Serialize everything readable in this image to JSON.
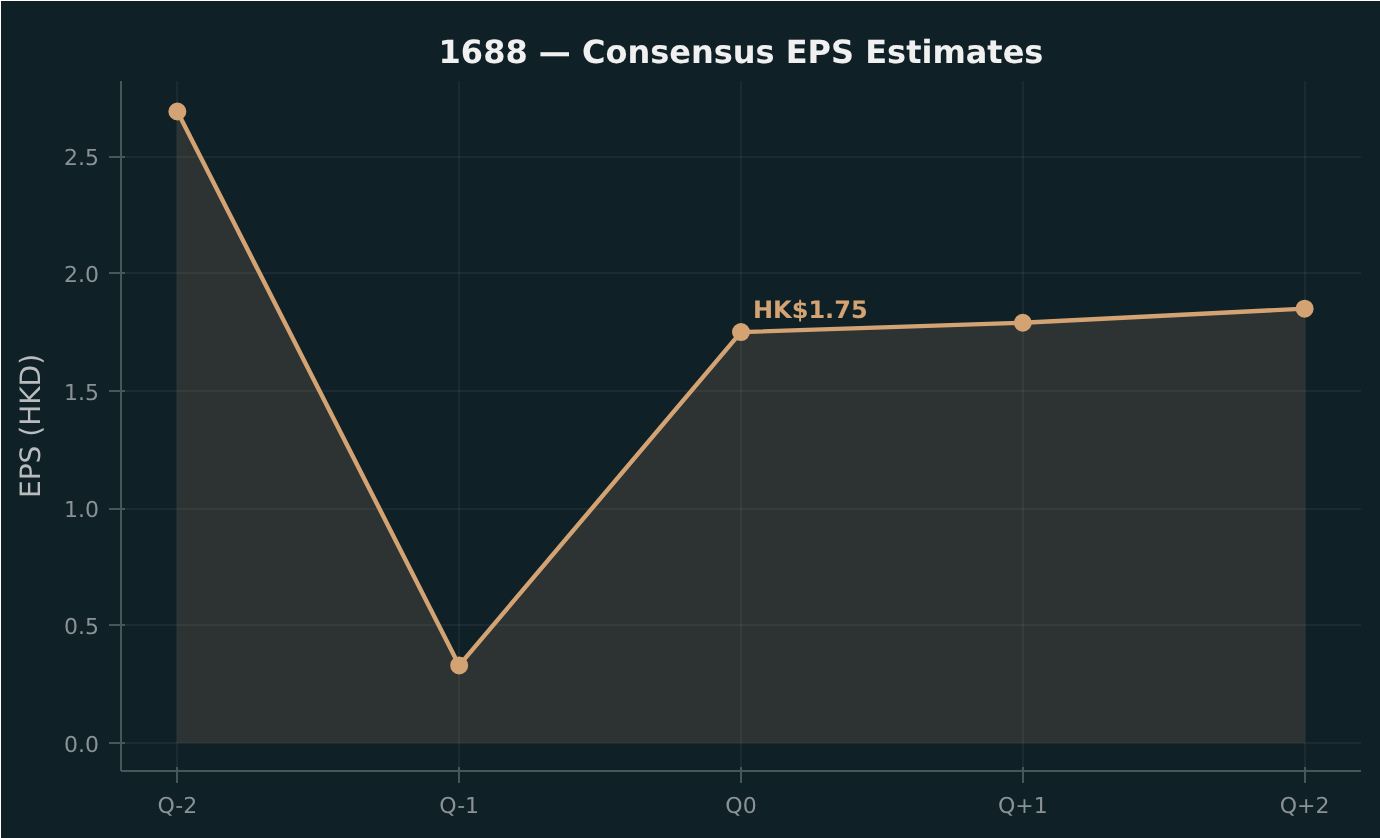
{
  "chart_data": {
    "type": "area",
    "title": "1688 — Consensus EPS Estimates",
    "ylabel": "EPS (HKD)",
    "categories": [
      "Q-2",
      "Q-1",
      "Q0",
      "Q+1",
      "Q+2"
    ],
    "series": [
      {
        "color": "#d4a373",
        "values": [
          2.69,
          0.33,
          1.75,
          1.79,
          1.85
        ]
      }
    ],
    "ylim": [
      -0.12,
      2.82
    ],
    "yticks": [
      {
        "value": 0,
        "label": "0.0"
      },
      {
        "value": 0.5,
        "label": "0.5"
      },
      {
        "value": 1,
        "label": "1.0"
      },
      {
        "value": 1.5,
        "label": "1.5"
      },
      {
        "value": 2,
        "label": "2.0"
      },
      {
        "value": 2.5,
        "label": "2.5"
      }
    ],
    "annotations": [
      {
        "text": "HK$1.75",
        "x": "Q0",
        "y": 1.75
      }
    ],
    "grid": true,
    "marker": "circle",
    "line_style": "solid"
  }
}
